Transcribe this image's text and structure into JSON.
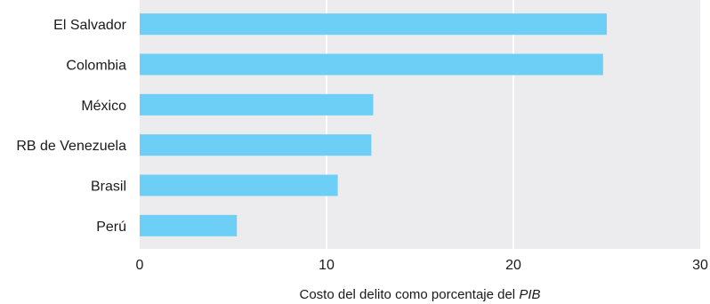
{
  "chart_data": {
    "type": "bar",
    "orientation": "horizontal",
    "categories": [
      "El Salvador",
      "Colombia",
      "México",
      "RB de Venezuela",
      "Brasil",
      "Perú"
    ],
    "values": [
      25.0,
      24.8,
      12.5,
      12.4,
      10.6,
      5.2
    ],
    "xlabel_prefix": "Costo del delito como porcentaje del ",
    "xlabel_emph": "PIB",
    "xlim": [
      0,
      30
    ],
    "xticks": [
      "0",
      "10",
      "20",
      "30"
    ],
    "grid": true,
    "bar_color": "#6dcff6",
    "plot_background": "#ecebee",
    "grid_color": "#ffffff"
  }
}
